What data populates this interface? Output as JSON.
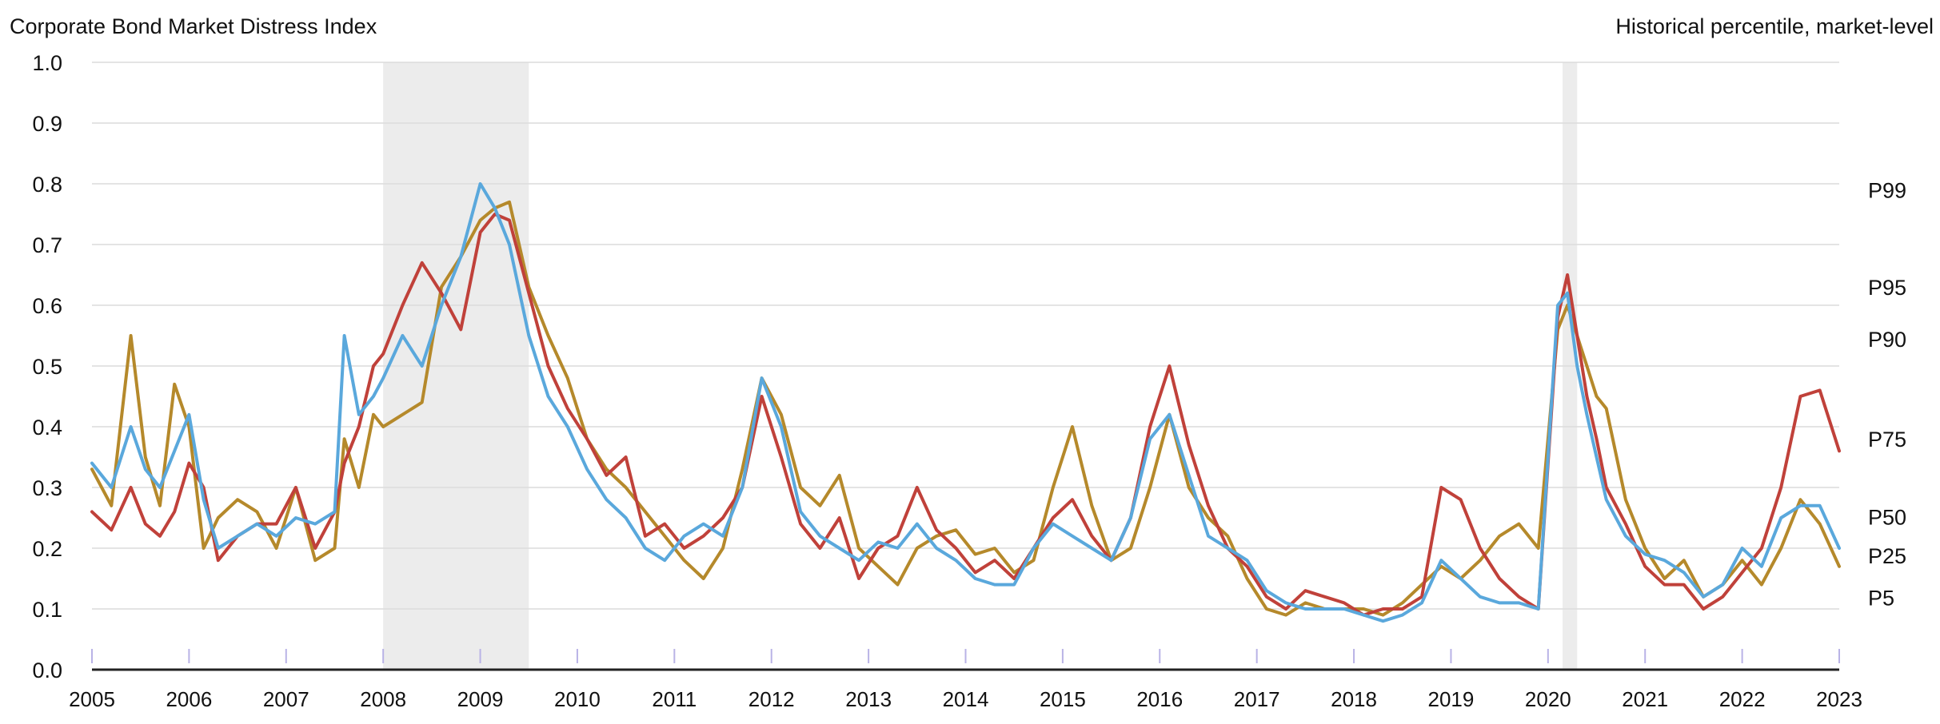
{
  "chart_data": {
    "type": "line",
    "title": "Corporate Bond Market Distress Index",
    "right_title": "Historical percentile, market-level",
    "xlim": [
      2005,
      2023
    ],
    "ylim": [
      0,
      1
    ],
    "x_ticks": [
      "2005",
      "2006",
      "2007",
      "2008",
      "2009",
      "2010",
      "2011",
      "2012",
      "2013",
      "2014",
      "2015",
      "2016",
      "2017",
      "2018",
      "2019",
      "2020",
      "2021",
      "2022",
      "2023"
    ],
    "y_ticks": [
      "0.0",
      "0.1",
      "0.2",
      "0.3",
      "0.4",
      "0.5",
      "0.6",
      "0.7",
      "0.8",
      "0.9",
      "1.0"
    ],
    "grid": true,
    "shaded_periods": [
      [
        2008.0,
        2009.5
      ],
      [
        2020.15,
        2020.3
      ]
    ],
    "percentile_labels": [
      {
        "label": "P99",
        "value": 0.79
      },
      {
        "label": "P95",
        "value": 0.63
      },
      {
        "label": "P90",
        "value": 0.545
      },
      {
        "label": "P75",
        "value": 0.38
      },
      {
        "label": "P50",
        "value": 0.252
      },
      {
        "label": "P25",
        "value": 0.188
      },
      {
        "label": "P5",
        "value": 0.119
      }
    ],
    "series": [
      {
        "color": "#b5892b",
        "x": [
          2005.0,
          2005.2,
          2005.4,
          2005.55,
          2005.7,
          2005.85,
          2006.0,
          2006.15,
          2006.3,
          2006.5,
          2006.7,
          2006.9,
          2007.1,
          2007.3,
          2007.5,
          2007.6,
          2007.75,
          2007.9,
          2008.0,
          2008.2,
          2008.4,
          2008.6,
          2008.8,
          2009.0,
          2009.15,
          2009.3,
          2009.5,
          2009.7,
          2009.9,
          2010.1,
          2010.3,
          2010.5,
          2010.7,
          2010.9,
          2011.1,
          2011.3,
          2011.5,
          2011.7,
          2011.9,
          2012.1,
          2012.3,
          2012.5,
          2012.7,
          2012.9,
          2013.1,
          2013.3,
          2013.5,
          2013.7,
          2013.9,
          2014.1,
          2014.3,
          2014.5,
          2014.7,
          2014.9,
          2015.1,
          2015.3,
          2015.5,
          2015.7,
          2015.9,
          2016.1,
          2016.3,
          2016.5,
          2016.7,
          2016.9,
          2017.1,
          2017.3,
          2017.5,
          2017.7,
          2017.9,
          2018.1,
          2018.3,
          2018.5,
          2018.7,
          2018.9,
          2019.1,
          2019.3,
          2019.5,
          2019.7,
          2019.9,
          2020.1,
          2020.2,
          2020.3,
          2020.4,
          2020.5,
          2020.6,
          2020.8,
          2021.0,
          2021.2,
          2021.4,
          2021.6,
          2021.8,
          2022.0,
          2022.2,
          2022.4,
          2022.6,
          2022.8,
          2023.0
        ],
        "y": [
          0.33,
          0.27,
          0.55,
          0.35,
          0.27,
          0.47,
          0.4,
          0.2,
          0.25,
          0.28,
          0.26,
          0.2,
          0.3,
          0.18,
          0.2,
          0.38,
          0.3,
          0.42,
          0.4,
          0.42,
          0.44,
          0.63,
          0.68,
          0.74,
          0.76,
          0.77,
          0.63,
          0.55,
          0.48,
          0.38,
          0.33,
          0.3,
          0.26,
          0.22,
          0.18,
          0.15,
          0.2,
          0.33,
          0.48,
          0.42,
          0.3,
          0.27,
          0.32,
          0.2,
          0.17,
          0.14,
          0.2,
          0.22,
          0.23,
          0.19,
          0.2,
          0.16,
          0.18,
          0.3,
          0.4,
          0.27,
          0.18,
          0.2,
          0.3,
          0.42,
          0.3,
          0.25,
          0.22,
          0.15,
          0.1,
          0.09,
          0.11,
          0.1,
          0.1,
          0.1,
          0.09,
          0.11,
          0.14,
          0.17,
          0.15,
          0.18,
          0.22,
          0.24,
          0.2,
          0.56,
          0.6,
          0.55,
          0.5,
          0.45,
          0.43,
          0.28,
          0.2,
          0.15,
          0.18,
          0.12,
          0.14,
          0.18,
          0.14,
          0.2,
          0.28,
          0.24,
          0.17
        ]
      },
      {
        "color": "#c0413a",
        "x": [
          2005.0,
          2005.2,
          2005.4,
          2005.55,
          2005.7,
          2005.85,
          2006.0,
          2006.15,
          2006.3,
          2006.5,
          2006.7,
          2006.9,
          2007.1,
          2007.3,
          2007.5,
          2007.6,
          2007.75,
          2007.9,
          2008.0,
          2008.2,
          2008.4,
          2008.6,
          2008.8,
          2009.0,
          2009.15,
          2009.3,
          2009.5,
          2009.7,
          2009.9,
          2010.1,
          2010.3,
          2010.5,
          2010.7,
          2010.9,
          2011.1,
          2011.3,
          2011.5,
          2011.7,
          2011.9,
          2012.1,
          2012.3,
          2012.5,
          2012.7,
          2012.9,
          2013.1,
          2013.3,
          2013.5,
          2013.7,
          2013.9,
          2014.1,
          2014.3,
          2014.5,
          2014.7,
          2014.9,
          2015.1,
          2015.3,
          2015.5,
          2015.7,
          2015.9,
          2016.1,
          2016.3,
          2016.5,
          2016.7,
          2016.9,
          2017.1,
          2017.3,
          2017.5,
          2017.7,
          2017.9,
          2018.1,
          2018.3,
          2018.5,
          2018.7,
          2018.9,
          2019.1,
          2019.3,
          2019.5,
          2019.7,
          2019.9,
          2020.1,
          2020.2,
          2020.3,
          2020.4,
          2020.5,
          2020.6,
          2020.8,
          2021.0,
          2021.2,
          2021.4,
          2021.6,
          2021.8,
          2022.0,
          2022.2,
          2022.4,
          2022.6,
          2022.8,
          2023.0
        ],
        "y": [
          0.26,
          0.23,
          0.3,
          0.24,
          0.22,
          0.26,
          0.34,
          0.3,
          0.18,
          0.22,
          0.24,
          0.24,
          0.3,
          0.2,
          0.26,
          0.34,
          0.4,
          0.5,
          0.52,
          0.6,
          0.67,
          0.62,
          0.56,
          0.72,
          0.75,
          0.74,
          0.62,
          0.5,
          0.43,
          0.38,
          0.32,
          0.35,
          0.22,
          0.24,
          0.2,
          0.22,
          0.25,
          0.3,
          0.45,
          0.35,
          0.24,
          0.2,
          0.25,
          0.15,
          0.2,
          0.22,
          0.3,
          0.23,
          0.2,
          0.16,
          0.18,
          0.15,
          0.2,
          0.25,
          0.28,
          0.22,
          0.18,
          0.25,
          0.4,
          0.5,
          0.37,
          0.27,
          0.2,
          0.17,
          0.12,
          0.1,
          0.13,
          0.12,
          0.11,
          0.09,
          0.1,
          0.1,
          0.12,
          0.3,
          0.28,
          0.2,
          0.15,
          0.12,
          0.1,
          0.58,
          0.65,
          0.55,
          0.45,
          0.38,
          0.3,
          0.24,
          0.17,
          0.14,
          0.14,
          0.1,
          0.12,
          0.16,
          0.2,
          0.3,
          0.45,
          0.46,
          0.36
        ]
      },
      {
        "color": "#5aa8dc",
        "x": [
          2005.0,
          2005.2,
          2005.4,
          2005.55,
          2005.7,
          2005.85,
          2006.0,
          2006.15,
          2006.3,
          2006.5,
          2006.7,
          2006.9,
          2007.1,
          2007.3,
          2007.5,
          2007.6,
          2007.75,
          2007.9,
          2008.0,
          2008.2,
          2008.4,
          2008.6,
          2008.8,
          2009.0,
          2009.15,
          2009.3,
          2009.5,
          2009.7,
          2009.9,
          2010.1,
          2010.3,
          2010.5,
          2010.7,
          2010.9,
          2011.1,
          2011.3,
          2011.5,
          2011.7,
          2011.9,
          2012.1,
          2012.3,
          2012.5,
          2012.7,
          2012.9,
          2013.1,
          2013.3,
          2013.5,
          2013.7,
          2013.9,
          2014.1,
          2014.3,
          2014.5,
          2014.7,
          2014.9,
          2015.1,
          2015.3,
          2015.5,
          2015.7,
          2015.9,
          2016.1,
          2016.3,
          2016.5,
          2016.7,
          2016.9,
          2017.1,
          2017.3,
          2017.5,
          2017.7,
          2017.9,
          2018.1,
          2018.3,
          2018.5,
          2018.7,
          2018.9,
          2019.1,
          2019.3,
          2019.5,
          2019.7,
          2019.9,
          2020.1,
          2020.2,
          2020.3,
          2020.4,
          2020.5,
          2020.6,
          2020.8,
          2021.0,
          2021.2,
          2021.4,
          2021.6,
          2021.8,
          2022.0,
          2022.2,
          2022.4,
          2022.6,
          2022.8,
          2023.0
        ],
        "y": [
          0.34,
          0.3,
          0.4,
          0.33,
          0.3,
          0.36,
          0.42,
          0.28,
          0.2,
          0.22,
          0.24,
          0.22,
          0.25,
          0.24,
          0.26,
          0.55,
          0.42,
          0.45,
          0.48,
          0.55,
          0.5,
          0.6,
          0.68,
          0.8,
          0.76,
          0.7,
          0.55,
          0.45,
          0.4,
          0.33,
          0.28,
          0.25,
          0.2,
          0.18,
          0.22,
          0.24,
          0.22,
          0.3,
          0.48,
          0.4,
          0.26,
          0.22,
          0.2,
          0.18,
          0.21,
          0.2,
          0.24,
          0.2,
          0.18,
          0.15,
          0.14,
          0.14,
          0.2,
          0.24,
          0.22,
          0.2,
          0.18,
          0.25,
          0.38,
          0.42,
          0.32,
          0.22,
          0.2,
          0.18,
          0.13,
          0.11,
          0.1,
          0.1,
          0.1,
          0.09,
          0.08,
          0.09,
          0.11,
          0.18,
          0.15,
          0.12,
          0.11,
          0.11,
          0.1,
          0.6,
          0.62,
          0.5,
          0.42,
          0.35,
          0.28,
          0.22,
          0.19,
          0.18,
          0.16,
          0.12,
          0.14,
          0.2,
          0.17,
          0.25,
          0.27,
          0.27,
          0.2
        ]
      }
    ]
  }
}
